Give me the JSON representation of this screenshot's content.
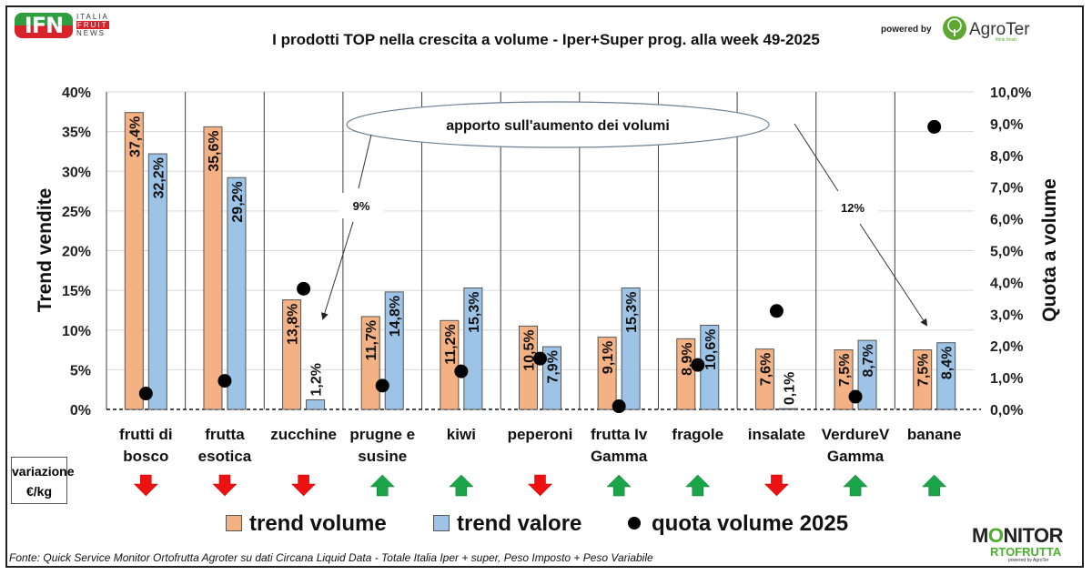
{
  "header": {
    "ifn_logo": {
      "main": "IFN",
      "line1": "ITALIA",
      "line2": "FRUIT",
      "line3": "NEWS"
    },
    "title": "I prodotti TOP nella crescita a volume -  Iper+Super prog. alla week 49-2025",
    "powered_by": "powered by",
    "agroter_logo": {
      "name": "AgroTer",
      "tagline": "think fresh",
      "icon": "tree-icon"
    }
  },
  "colors": {
    "trend_volume": "#f4b183",
    "trend_valore": "#9dc3e6",
    "quota": "#000000",
    "arrow_up": "#1aa548",
    "arrow_down": "#ee1111",
    "gridline": "#d9d9d9",
    "separator": "#404040"
  },
  "chart_data": {
    "type": "bar",
    "title": "I prodotti TOP nella crescita a volume -  Iper+Super prog. alla week 49-2025",
    "categories": [
      [
        "frutti di",
        "bosco"
      ],
      [
        "frutta",
        "esotica"
      ],
      [
        "zucchine"
      ],
      [
        "prugne e",
        "susine"
      ],
      [
        "kiwi"
      ],
      [
        "peperoni"
      ],
      [
        "frutta Iv",
        "Gamma"
      ],
      [
        "fragole"
      ],
      [
        "insalate"
      ],
      [
        "VerdureV",
        "Gamma"
      ],
      [
        "banane"
      ]
    ],
    "series": [
      {
        "name": "trend volume",
        "axis": "left",
        "kind": "bar",
        "values": [
          37.4,
          35.6,
          13.8,
          11.7,
          11.2,
          10.5,
          9.1,
          8.9,
          7.6,
          7.5,
          7.5
        ],
        "labels": [
          "37,4%",
          "35,6%",
          "13,8%",
          "11,7%",
          "11,2%",
          "10,5%",
          "9,1%",
          "8,9%",
          "7,6%",
          "7,5%",
          "7,5%"
        ]
      },
      {
        "name": "trend valore",
        "axis": "left",
        "kind": "bar",
        "values": [
          32.2,
          29.2,
          1.2,
          14.8,
          15.3,
          7.9,
          15.3,
          10.6,
          0.1,
          8.7,
          8.4
        ],
        "labels": [
          "32,2%",
          "29,2%",
          "1,2%",
          "14,8%",
          "15,3%",
          "7,9%",
          "15,3%",
          "10,6%",
          "0,1%",
          "8,7%",
          "8,4%"
        ]
      },
      {
        "name": "quota volume 2025",
        "axis": "right",
        "kind": "scatter",
        "values": [
          0.5,
          0.9,
          3.8,
          0.75,
          1.2,
          1.6,
          0.1,
          1.4,
          3.1,
          0.4,
          8.9
        ]
      }
    ],
    "ylabel": "Trend vendite",
    "ylim": [
      0,
      40
    ],
    "yticks": [
      "0%",
      "5%",
      "10%",
      "15%",
      "20%",
      "25%",
      "30%",
      "35%",
      "40%"
    ],
    "y2label": "Quota a volume",
    "y2lim": [
      0,
      10
    ],
    "y2ticks": [
      "0,0%",
      "1,0%",
      "2,0%",
      "3,0%",
      "4,0%",
      "5,0%",
      "6,0%",
      "7,0%",
      "8,0%",
      "9,0%",
      "10,0%"
    ],
    "grid": true,
    "legend_position": "bottom",
    "annotations": {
      "callout": "apporto sull'aumento dei volumi",
      "arrow_labels": [
        {
          "text": "9%",
          "target_category": "zucchine"
        },
        {
          "text": "12%",
          "target_category": "banane"
        }
      ]
    },
    "price_change": {
      "label": [
        "variazione",
        "€/kg"
      ],
      "directions": [
        "down",
        "down",
        "down",
        "up",
        "up",
        "down",
        "up",
        "up",
        "down",
        "up",
        "up"
      ]
    }
  },
  "legend": {
    "items": [
      {
        "label": "trend volume"
      },
      {
        "label": "trend valore"
      },
      {
        "label": "quota volume 2025"
      }
    ]
  },
  "footer": {
    "source": "Fonte: Quick Service Monitor Ortofrutta Agroter su dati Circana Liquid Data - Totale Italia Iper + super, Peso Imposto + Peso Variabile",
    "monitor_logo": {
      "line1_a": "M",
      "line1_b": "O",
      "line1_c": "NITOR",
      "line2": "RTOFRUTTA",
      "line3": "powered by AgroTer"
    }
  }
}
